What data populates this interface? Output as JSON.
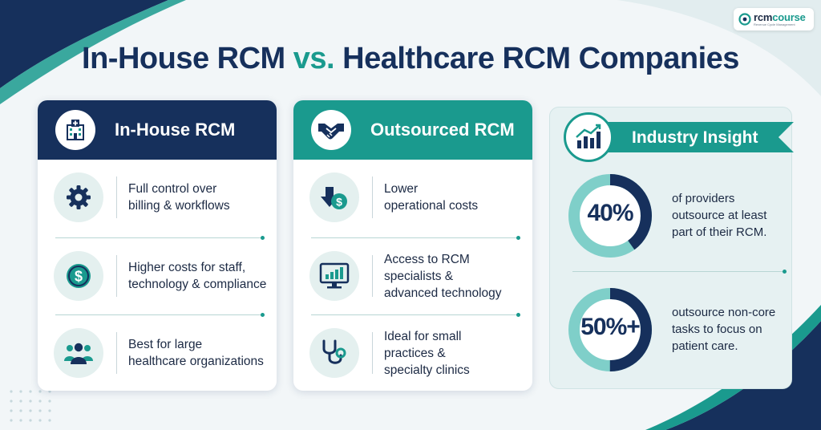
{
  "brand": {
    "name_prefix": "rcm",
    "name_suffix": "course",
    "tagline": "Revenue Cycle Management"
  },
  "title": {
    "part1": "In-House RCM ",
    "vs": "vs.",
    "part2": " Healthcare RCM Companies"
  },
  "colors": {
    "navy": "#16305c",
    "teal": "#1a9a8e",
    "light_teal": "#e4f0ef",
    "background": "#f2f6f8"
  },
  "in_house": {
    "title": "In-House RCM",
    "icon": "hospital-icon",
    "items": [
      {
        "icon": "gear-icon",
        "line1": "Full control over",
        "line2": "billing & workflows"
      },
      {
        "icon": "dollar-icon",
        "line1": "Higher costs for staff,",
        "line2": "technology & compliance"
      },
      {
        "icon": "people-icon",
        "line1": "Best for large",
        "line2": "healthcare organizations"
      }
    ]
  },
  "outsourced": {
    "title": "Outsourced RCM",
    "icon": "handshake-icon",
    "items": [
      {
        "icon": "cost-down-icon",
        "line1": "Lower",
        "line2": "operational costs"
      },
      {
        "icon": "monitor-chart-icon",
        "line1": "Access to RCM",
        "line2": "specialists &",
        "line3": "advanced technology"
      },
      {
        "icon": "stethoscope-icon",
        "line1": "Ideal for small",
        "line2": "practices &",
        "line3": "specialty clinics"
      }
    ]
  },
  "insight": {
    "title": "Industry Insight",
    "icon": "bar-chart-icon",
    "stats": [
      {
        "value": "40%",
        "fraction": 0.4,
        "line1": "of providers",
        "line2": "outsource at least",
        "line3": "part of their RCM."
      },
      {
        "value": "50%+",
        "fraction": 0.5,
        "line1": "outsource non-core",
        "line2": "tasks to focus on",
        "line3": "patient care."
      }
    ]
  }
}
